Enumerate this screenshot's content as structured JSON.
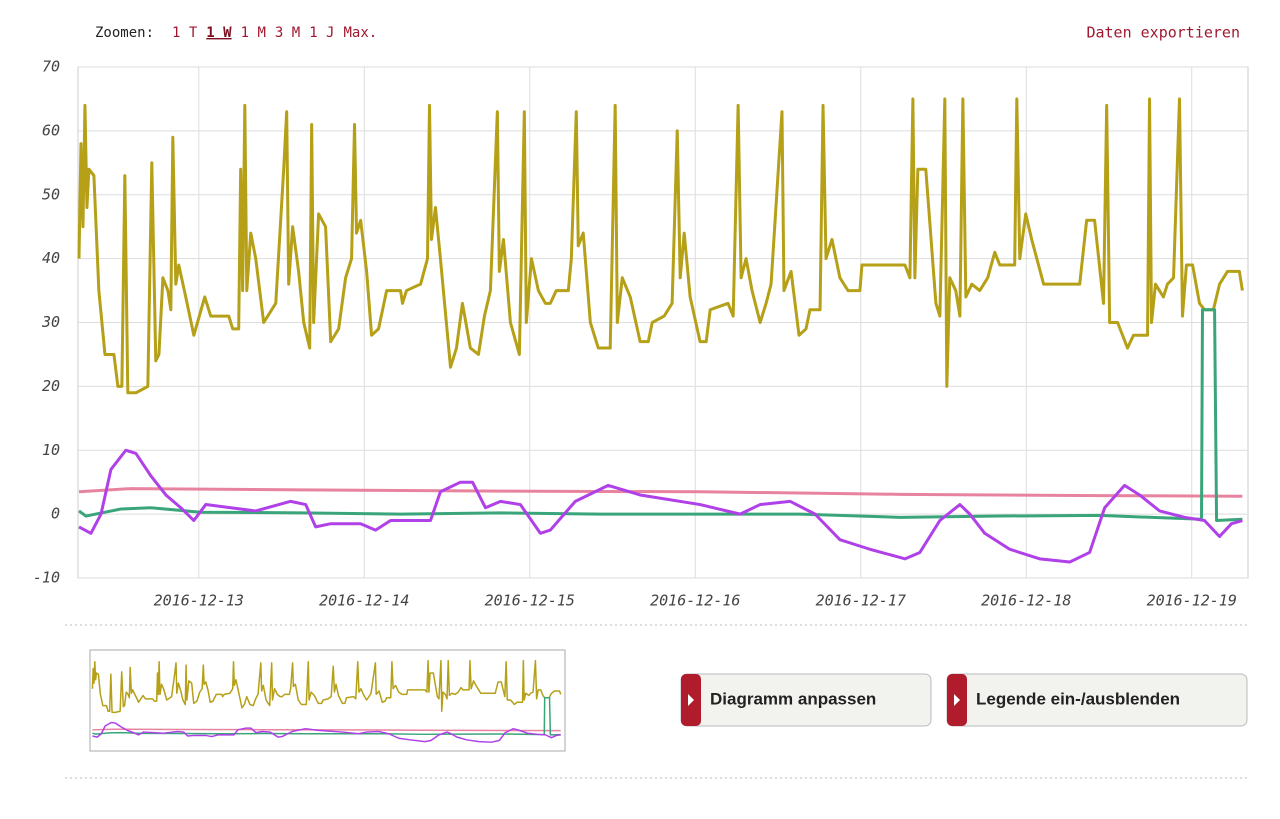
{
  "toolbar": {
    "zoom_label": "Zoomen:",
    "zoom_options": [
      "1 T",
      "1 W",
      "1 M",
      "3 M",
      "1 J",
      "Max."
    ],
    "active_zoom": "1 W",
    "export": "Daten exportieren"
  },
  "buttons": [
    "Diagramm anpassen",
    "Legende ein-/ausblenden"
  ],
  "chart_data": {
    "type": "line",
    "xlim": [
      12.27,
      19.34
    ],
    "ylim": [
      -10,
      70
    ],
    "yticks": [
      -10,
      0,
      10,
      20,
      30,
      40,
      50,
      60,
      70
    ],
    "xticks": [
      {
        "value": 13,
        "label": "2016-12-13"
      },
      {
        "value": 14,
        "label": "2016-12-14"
      },
      {
        "value": 15,
        "label": "2016-12-15"
      },
      {
        "value": 16,
        "label": "2016-12-16"
      },
      {
        "value": 17,
        "label": "2016-12-17"
      },
      {
        "value": 18,
        "label": "2016-12-18"
      },
      {
        "value": 19,
        "label": "2016-12-19"
      }
    ],
    "grid": true,
    "series": [
      {
        "color": "#b5a018",
        "x": [
          12.276,
          12.288,
          12.3,
          12.312,
          12.324,
          12.336,
          12.366,
          12.396,
          12.433,
          12.487,
          12.511,
          12.535,
          12.553,
          12.571,
          12.62,
          12.692,
          12.716,
          12.74,
          12.759,
          12.783,
          12.813,
          12.831,
          12.843,
          12.861,
          12.879,
          12.921,
          12.97,
          13.036,
          13.072,
          13.181,
          13.205,
          13.241,
          13.253,
          13.265,
          13.278,
          13.29,
          13.314,
          13.344,
          13.392,
          13.465,
          13.513,
          13.531,
          13.543,
          13.567,
          13.603,
          13.634,
          13.67,
          13.682,
          13.694,
          13.724,
          13.766,
          13.797,
          13.845,
          13.887,
          13.923,
          13.941,
          13.953,
          13.978,
          14.014,
          14.044,
          14.086,
          14.135,
          14.219,
          14.231,
          14.255,
          14.34,
          14.382,
          14.394,
          14.406,
          14.43,
          14.46,
          14.521,
          14.557,
          14.593,
          14.641,
          14.69,
          14.726,
          14.762,
          14.804,
          14.816,
          14.841,
          14.883,
          14.937,
          14.967,
          14.979,
          15.01,
          15.052,
          15.094,
          15.124,
          15.16,
          15.233,
          15.251,
          15.281,
          15.293,
          15.323,
          15.366,
          15.414,
          15.486,
          15.516,
          15.529,
          15.559,
          15.607,
          15.667,
          15.716,
          15.74,
          15.812,
          15.86,
          15.891,
          15.909,
          15.933,
          15.969,
          16.029,
          16.066,
          16.09,
          16.198,
          16.229,
          16.259,
          16.277,
          16.307,
          16.343,
          16.392,
          16.428,
          16.458,
          16.524,
          16.536,
          16.579,
          16.627,
          16.669,
          16.693,
          16.754,
          16.772,
          16.79,
          16.826,
          16.874,
          16.923,
          16.995,
          17.007,
          17.267,
          17.297,
          17.315,
          17.327,
          17.345,
          17.393,
          17.454,
          17.478,
          17.508,
          17.52,
          17.538,
          17.574,
          17.599,
          17.617,
          17.635,
          17.671,
          17.719,
          17.767,
          17.81,
          17.84,
          17.93,
          17.943,
          17.961,
          17.997,
          18.033,
          18.105,
          18.323,
          18.365,
          18.413,
          18.467,
          18.486,
          18.504,
          18.552,
          18.612,
          18.648,
          18.733,
          18.745,
          18.757,
          18.781,
          18.829,
          18.853,
          18.89,
          18.926,
          18.944,
          18.968,
          19.005,
          19.047,
          19.077,
          19.131,
          19.168,
          19.216,
          19.288,
          19.306
        ],
        "values": [
          40,
          58,
          45,
          64,
          48,
          54,
          53,
          35,
          25,
          25,
          20,
          20,
          53,
          19,
          19,
          20,
          55,
          24,
          25,
          37,
          35,
          32,
          59,
          36,
          39,
          34,
          28,
          34,
          31,
          31,
          29,
          29,
          54,
          35,
          64,
          35,
          44,
          40,
          30,
          33,
          54,
          63,
          36,
          45,
          38,
          30,
          26,
          61,
          30,
          47,
          45,
          27,
          29,
          37,
          40,
          61,
          44,
          46,
          38,
          28,
          29,
          35,
          35,
          33,
          35,
          36,
          40,
          64,
          43,
          48,
          40,
          23,
          26,
          33,
          26,
          25,
          31,
          35,
          63,
          38,
          43,
          30,
          25,
          63,
          30,
          40,
          35,
          33,
          33,
          35,
          35,
          40,
          63,
          42,
          44,
          30,
          26,
          26,
          64,
          30,
          37,
          34,
          27,
          27,
          30,
          31,
          33,
          60,
          37,
          44,
          34,
          27,
          27,
          32,
          33,
          31,
          64,
          37,
          40,
          35,
          30,
          33,
          36,
          63,
          35,
          38,
          28,
          29,
          32,
          32,
          64,
          40,
          43,
          37,
          35,
          35,
          39,
          39,
          37,
          65,
          37,
          54,
          54,
          33,
          31,
          65,
          20,
          37,
          35,
          31,
          65,
          34,
          36,
          35,
          37,
          41,
          39,
          39,
          65,
          40,
          47,
          43,
          36,
          36,
          46,
          46,
          33,
          64,
          30,
          30,
          26,
          28,
          28,
          65,
          30,
          36,
          34,
          36,
          37,
          65,
          31,
          39,
          39,
          33,
          32,
          32,
          36,
          38,
          38,
          35
        ]
      },
      {
        "color": "#e8839f",
        "x": [
          12.276,
          12.59,
          13.616,
          14.823,
          16.029,
          17.237,
          18.444,
          19.306
        ],
        "values": [
          3.5,
          4,
          3.8,
          3.6,
          3.5,
          3.1,
          2.9,
          2.8
        ]
      },
      {
        "color": "#3aa57a",
        "x": [
          12.276,
          12.318,
          12.529,
          12.71,
          13.012,
          13.616,
          14.219,
          14.823,
          15.426,
          16.029,
          16.633,
          17.237,
          17.84,
          18.444,
          19.059,
          19.065,
          19.138,
          19.15,
          19.306
        ],
        "values": [
          0.5,
          -0.3,
          0.8,
          1,
          0.3,
          0.2,
          0,
          0.2,
          0,
          0,
          0,
          -0.5,
          -0.3,
          -0.2,
          -0.8,
          32,
          32,
          -1,
          -0.8
        ]
      },
      {
        "color": "#b040e8",
        "x": [
          12.276,
          12.348,
          12.409,
          12.469,
          12.559,
          12.62,
          12.71,
          12.801,
          12.891,
          12.97,
          13.042,
          13.193,
          13.344,
          13.555,
          13.646,
          13.706,
          13.797,
          13.978,
          14.068,
          14.159,
          14.4,
          14.46,
          14.581,
          14.654,
          14.732,
          14.823,
          14.943,
          15.064,
          15.124,
          15.275,
          15.474,
          15.667,
          16.029,
          16.271,
          16.392,
          16.573,
          16.724,
          16.874,
          17.055,
          17.267,
          17.357,
          17.478,
          17.599,
          17.659,
          17.749,
          17.9,
          18.081,
          18.263,
          18.383,
          18.474,
          18.594,
          18.685,
          18.806,
          18.956,
          19.077,
          19.168,
          19.24,
          19.306
        ],
        "values": [
          -2,
          -3,
          0,
          7,
          10,
          9.5,
          6,
          3,
          1,
          -1,
          1.5,
          1,
          0.5,
          2,
          1.5,
          -2,
          -1.5,
          -1.5,
          -2.5,
          -1,
          -1,
          3.5,
          5,
          5,
          1,
          2,
          1.5,
          -3,
          -2.5,
          2,
          4.5,
          3,
          1.5,
          0,
          1.5,
          2,
          0,
          -4,
          -5.5,
          -7,
          -6,
          -1,
          1.5,
          0,
          -3,
          -5.5,
          -7,
          -7.5,
          -6,
          1,
          4.5,
          3,
          0.5,
          -0.5,
          -1,
          -3.5,
          -1.5,
          -1
        ]
      }
    ]
  }
}
